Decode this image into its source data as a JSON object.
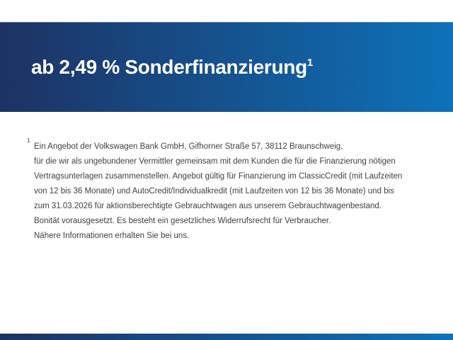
{
  "banner": {
    "title": "ab 2,49 % Sonderfinanzierung",
    "title_superscript": "1"
  },
  "footnote": {
    "marker": "1",
    "lines": [
      "Ein Angebot der Volkswagen Bank GmbH, Gifhorner Straße 57, 38112 Braunschweig,",
      "für die wir als ungebundener Vermittler gemeinsam mit dem Kunden die für die Finanzierung nötigen",
      "Vertragsunterlagen zusammenstellen. Angebot gültig für Finanzierung im ClassicCredit (mit Laufzeiten",
      "von 12 bis 36 Monate) und AutoCredit/Individualkredit (mit Laufzeiten von 12 bis 36 Monate) und bis",
      "zum 31.03.2026 für aktionsberechtigte Gebrauchtwagen aus unserem Gebrauchtwagenbestand.",
      "Bonität vorausgesetzt. Es besteht ein gesetzliches Widerrufsrecht für Verbraucher.",
      "Nähere Informationen erhalten Sie bei uns."
    ]
  },
  "colors": {
    "gradient_left": "#1d3263",
    "gradient_right": "#0d72b9",
    "text_gray": "#3f3f3f",
    "background": "#ffffff"
  }
}
